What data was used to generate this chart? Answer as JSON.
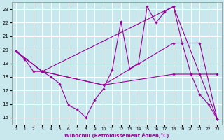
{
  "xlabel": "Windchill (Refroidissement éolien,°C)",
  "x_ticks": [
    0,
    1,
    2,
    3,
    4,
    5,
    6,
    7,
    8,
    9,
    10,
    11,
    12,
    13,
    14,
    15,
    16,
    17,
    18,
    19,
    20,
    21,
    22,
    23
  ],
  "ylim": [
    14.5,
    23.5
  ],
  "xlim": [
    -0.5,
    23.5
  ],
  "yticks": [
    15,
    16,
    17,
    18,
    19,
    20,
    21,
    22,
    23
  ],
  "bg_color": "#c8e8ee",
  "grid_color": "#ffffff",
  "line_color": "#990099",
  "line1_x": [
    0,
    1,
    2,
    3,
    4,
    5,
    6,
    7,
    8,
    9,
    10,
    11,
    12,
    13,
    14,
    15,
    16,
    17,
    18,
    19,
    20,
    21,
    22,
    23
  ],
  "line1_y": [
    19.9,
    19.3,
    18.4,
    18.4,
    18.0,
    17.5,
    15.9,
    15.6,
    15.0,
    16.3,
    17.1,
    18.5,
    22.1,
    18.6,
    19.0,
    23.2,
    22.0,
    22.8,
    23.2,
    20.5,
    18.2,
    16.7,
    16.0,
    14.9
  ],
  "line2_x": [
    0,
    3,
    10,
    18,
    21,
    23
  ],
  "line2_y": [
    19.9,
    18.4,
    17.4,
    18.2,
    18.2,
    18.2
  ],
  "line3_x": [
    0,
    3,
    10,
    18,
    21,
    23
  ],
  "line3_y": [
    19.9,
    18.4,
    17.4,
    20.5,
    20.5,
    14.9
  ],
  "line4_x": [
    0,
    3,
    18,
    23
  ],
  "line4_y": [
    19.9,
    18.4,
    23.2,
    14.9
  ]
}
